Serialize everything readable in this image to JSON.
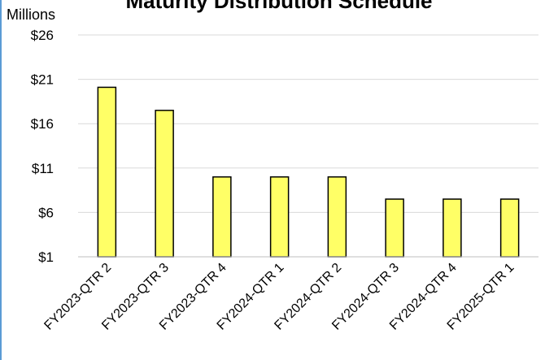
{
  "chart_data": {
    "type": "bar",
    "title": "Maturity Distribution Schedule",
    "units_label": "Millions",
    "categories": [
      "FY2023-QTR 2",
      "FY2023-QTR 3",
      "FY2023-QTR 4",
      "FY2024-QTR 1",
      "FY2024-QTR 2",
      "FY2024-QTR 3",
      "FY2024-QTR 4",
      "FY2025-QTR 1"
    ],
    "values": [
      20.1,
      17.5,
      10.0,
      10.0,
      10.0,
      7.5,
      7.5,
      7.5
    ],
    "ylim": [
      1,
      26
    ],
    "yticks": [
      1,
      6,
      11,
      16,
      21,
      26
    ],
    "ytick_labels": [
      "$1",
      "$6",
      "$11",
      "$16",
      "$21",
      "$26"
    ],
    "xlabel": "",
    "ylabel": "",
    "grid": true,
    "bar_color": "#ffff66",
    "bar_stroke": "#000000",
    "grid_color": "#d9d9d9"
  }
}
